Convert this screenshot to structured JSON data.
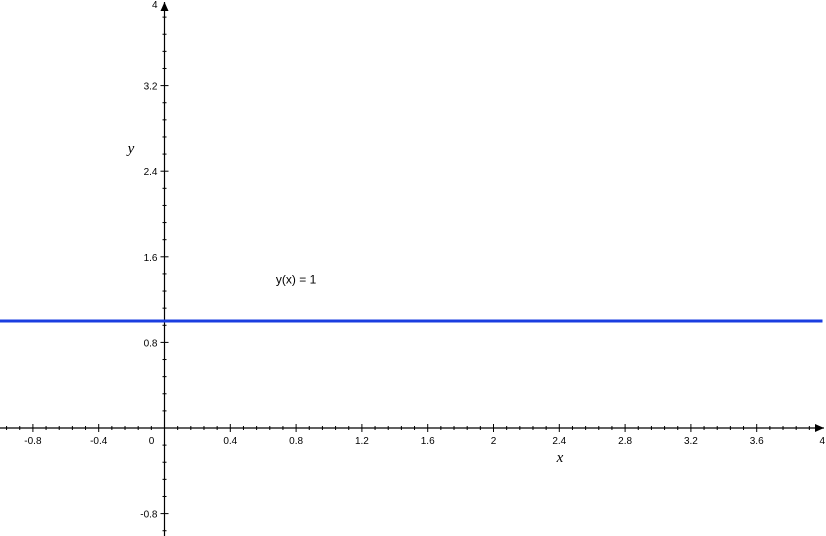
{
  "chart_data": {
    "type": "line",
    "title": "",
    "xlabel": "x",
    "ylabel": "y",
    "xlim": [
      -1,
      4
    ],
    "ylim": [
      -0.9,
      4
    ],
    "x_ticks": [
      {
        "value": -0.8,
        "label": "-0.8"
      },
      {
        "value": -0.4,
        "label": "-0.4"
      },
      {
        "value": 0,
        "label": "0"
      },
      {
        "value": 0.4,
        "label": "0.4"
      },
      {
        "value": 0.8,
        "label": "0.8"
      },
      {
        "value": 1.2,
        "label": "1.2"
      },
      {
        "value": 1.6,
        "label": "1.6"
      },
      {
        "value": 2,
        "label": "2"
      },
      {
        "value": 2.4,
        "label": "2.4"
      },
      {
        "value": 2.8,
        "label": "2.8"
      },
      {
        "value": 3.2,
        "label": "3.2"
      },
      {
        "value": 3.6,
        "label": "3.6"
      },
      {
        "value": 4,
        "label": "4"
      }
    ],
    "y_ticks": [
      {
        "value": -0.8,
        "label": "-0.8"
      },
      {
        "value": 0.8,
        "label": "0.8"
      },
      {
        "value": 1.6,
        "label": "1.6"
      },
      {
        "value": 2.4,
        "label": "2.4"
      },
      {
        "value": 3.2,
        "label": "3.2"
      },
      {
        "value": 4,
        "label": "4"
      }
    ],
    "series": [
      {
        "x": [
          -1,
          4
        ],
        "values": [
          1,
          1
        ],
        "color": "#1a3ee0"
      }
    ],
    "annotations": [
      {
        "text": "y(x) = 1",
        "x": 0.8,
        "y": 1.35
      }
    ],
    "grid": false,
    "axis_color": "#000000"
  }
}
